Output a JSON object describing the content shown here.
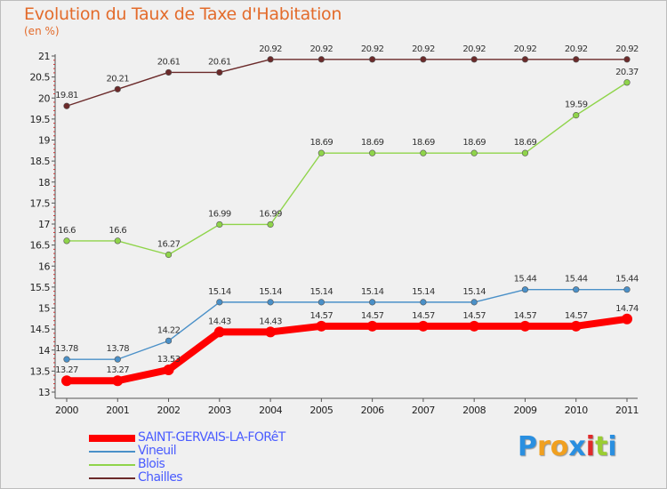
{
  "header": {
    "title": "Evolution du Taux de Taxe d'Habitation",
    "subtitle": "(en %)"
  },
  "logo": {
    "letters": [
      "P",
      "r",
      "o",
      "x",
      "i",
      "t",
      "i"
    ],
    "colors": [
      "#2a8fe0",
      "#f0a020",
      "#f0a020",
      "#2a8fe0",
      "#e02a2a",
      "#9acd32",
      "#2a8fe0"
    ]
  },
  "chart_data": {
    "type": "line",
    "title": "Evolution du Taux de Taxe d'Habitation",
    "ylabel": "(en %)",
    "xlabel": "",
    "x": [
      "2000",
      "2001",
      "2002",
      "2003",
      "2004",
      "2005",
      "2006",
      "2007",
      "2008",
      "2009",
      "2010",
      "2011"
    ],
    "ylim": [
      13,
      21
    ],
    "yticks": [
      "13",
      "13.5",
      "14",
      "14.5",
      "15",
      "15.5",
      "16",
      "16.5",
      "17",
      "17.5",
      "18",
      "18.5",
      "19",
      "19.5",
      "20",
      "20.5",
      "21"
    ],
    "grid": false,
    "legend_position": "bottom-left",
    "series": [
      {
        "name": "SAINT-GERVAIS-LA-FORêT",
        "color": "#ff0000",
        "values": [
          13.27,
          13.27,
          13.53,
          14.43,
          14.43,
          14.57,
          14.57,
          14.57,
          14.57,
          14.57,
          14.57,
          14.74
        ],
        "labels": [
          "13.27",
          "13.27",
          "13.53",
          "14.43",
          "14.43",
          "14.57",
          "14.57",
          "14.57",
          "14.57",
          "14.57",
          "14.57",
          "14.74"
        ]
      },
      {
        "name": "Vineuil",
        "color": "#4a90c8",
        "values": [
          13.78,
          13.78,
          14.22,
          15.14,
          15.14,
          15.14,
          15.14,
          15.14,
          15.14,
          15.44,
          15.44,
          15.44
        ],
        "labels": [
          "13.78",
          "13.78",
          "14.22",
          "15.14",
          "15.14",
          "15.14",
          "15.14",
          "15.14",
          "15.14",
          "15.44",
          "15.44",
          "15.44"
        ]
      },
      {
        "name": "Blois",
        "color": "#8fd44a",
        "values": [
          16.6,
          16.6,
          16.27,
          16.99,
          16.99,
          18.69,
          18.69,
          18.69,
          18.69,
          18.69,
          19.59,
          20.37
        ],
        "labels": [
          "16.6",
          "16.6",
          "16.27",
          "16.99",
          "16.99",
          "18.69",
          "18.69",
          "18.69",
          "18.69",
          "18.69",
          "19.59",
          "20.37"
        ]
      },
      {
        "name": "Chailles",
        "color": "#6b2a2a",
        "values": [
          19.81,
          20.21,
          20.61,
          20.61,
          20.92,
          20.92,
          20.92,
          20.92,
          20.92,
          20.92,
          20.92,
          20.92
        ],
        "labels": [
          "19.81",
          "20.21",
          "20.61",
          "20.61",
          "20.92",
          "20.92",
          "20.92",
          "20.92",
          "20.92",
          "20.92",
          "20.92",
          "20.92"
        ]
      }
    ]
  }
}
